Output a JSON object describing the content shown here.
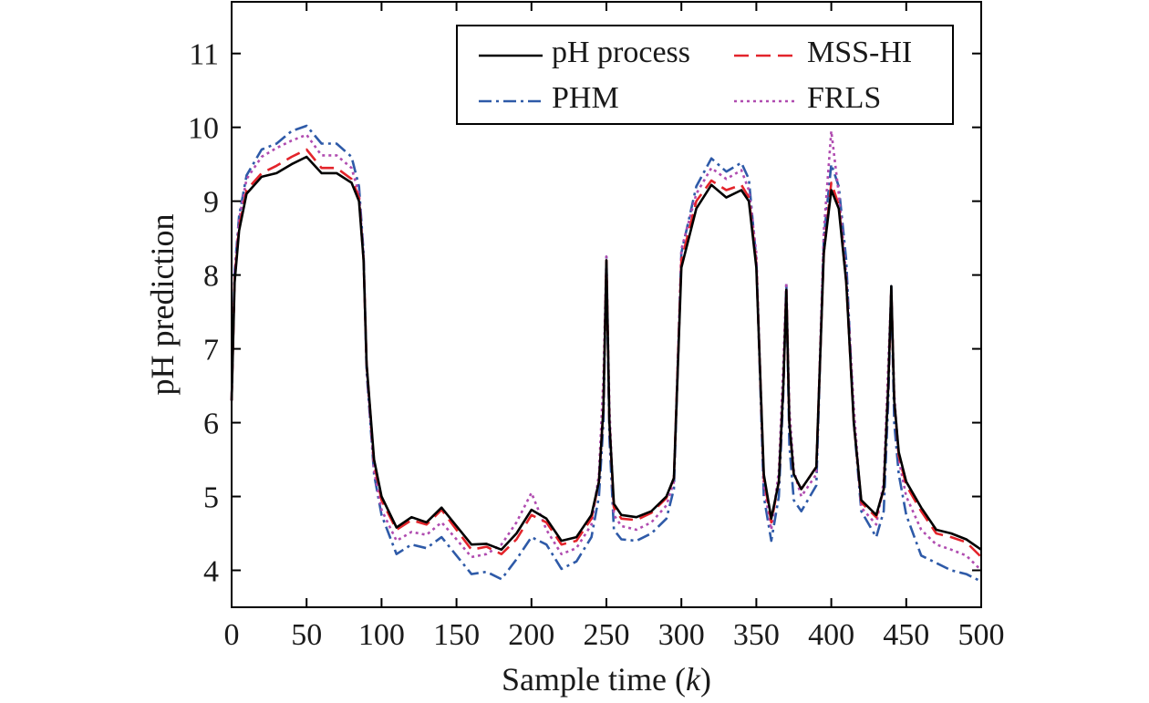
{
  "chart_data": {
    "type": "line",
    "title": "",
    "xlabel": "Sample time (",
    "xlabel_var": "k",
    "xlabel_close": ")",
    "ylabel": "pH prediction",
    "xlim": [
      0,
      500
    ],
    "ylim": [
      3.5,
      11.7
    ],
    "xticks": [
      0,
      50,
      100,
      150,
      200,
      250,
      300,
      350,
      400,
      450,
      500
    ],
    "yticks": [
      4,
      5,
      6,
      7,
      8,
      9,
      10,
      11
    ],
    "grid": false,
    "legend_position": "top-right",
    "x": [
      0,
      2,
      5,
      10,
      20,
      30,
      40,
      50,
      60,
      70,
      80,
      85,
      88,
      90,
      95,
      100,
      110,
      120,
      130,
      140,
      150,
      160,
      170,
      180,
      190,
      200,
      210,
      220,
      230,
      240,
      245,
      248,
      250,
      252,
      255,
      260,
      270,
      280,
      290,
      295,
      300,
      310,
      320,
      330,
      340,
      345,
      350,
      355,
      360,
      365,
      368,
      370,
      372,
      375,
      380,
      390,
      395,
      400,
      405,
      410,
      415,
      420,
      430,
      435,
      438,
      440,
      442,
      445,
      450,
      460,
      470,
      480,
      490,
      500
    ],
    "series": [
      {
        "name": "pH process",
        "color": "#000000",
        "dash": "solid",
        "values": [
          6.3,
          7.9,
          8.6,
          9.1,
          9.33,
          9.38,
          9.5,
          9.6,
          9.38,
          9.38,
          9.25,
          9.0,
          8.2,
          6.8,
          5.5,
          5.0,
          4.58,
          4.72,
          4.65,
          4.85,
          4.6,
          4.35,
          4.36,
          4.28,
          4.5,
          4.82,
          4.7,
          4.4,
          4.45,
          4.75,
          5.2,
          6.2,
          8.2,
          6.0,
          4.9,
          4.75,
          4.72,
          4.8,
          5.0,
          5.25,
          8.1,
          8.9,
          9.22,
          9.05,
          9.15,
          9.0,
          8.1,
          5.3,
          4.7,
          5.2,
          6.5,
          7.8,
          6.0,
          5.3,
          5.1,
          5.4,
          8.3,
          9.15,
          8.9,
          7.9,
          6.0,
          4.95,
          4.75,
          5.1,
          6.5,
          7.85,
          6.3,
          5.6,
          5.2,
          4.85,
          4.55,
          4.5,
          4.42,
          4.28
        ]
      },
      {
        "name": "MSS-HI",
        "color": "#e3242b",
        "dash": "dash",
        "values": [
          6.3,
          7.95,
          8.65,
          9.15,
          9.38,
          9.48,
          9.6,
          9.7,
          9.45,
          9.45,
          9.3,
          9.05,
          8.2,
          6.8,
          5.45,
          4.95,
          4.55,
          4.68,
          4.62,
          4.82,
          4.55,
          4.28,
          4.32,
          4.22,
          4.42,
          4.75,
          4.65,
          4.35,
          4.4,
          4.7,
          5.2,
          6.2,
          8.2,
          6.0,
          4.85,
          4.7,
          4.68,
          4.78,
          4.98,
          5.25,
          8.2,
          9.0,
          9.28,
          9.15,
          9.22,
          9.05,
          8.15,
          5.25,
          4.65,
          5.2,
          6.5,
          7.8,
          6.0,
          5.28,
          5.1,
          5.4,
          8.3,
          9.25,
          8.95,
          7.9,
          6.0,
          4.92,
          4.72,
          5.1,
          6.5,
          7.8,
          6.3,
          5.55,
          5.15,
          4.8,
          4.5,
          4.45,
          4.38,
          4.18
        ]
      },
      {
        "name": "PHM",
        "color": "#2e5aa8",
        "dash": "dashdot",
        "values": [
          6.3,
          8.05,
          8.8,
          9.35,
          9.7,
          9.78,
          9.95,
          10.02,
          9.78,
          9.78,
          9.6,
          9.2,
          8.3,
          6.7,
          5.3,
          4.75,
          4.22,
          4.35,
          4.3,
          4.45,
          4.2,
          3.95,
          3.98,
          3.88,
          4.15,
          4.45,
          4.35,
          4.02,
          4.12,
          4.45,
          5.0,
          6.0,
          8.25,
          5.8,
          4.55,
          4.42,
          4.4,
          4.5,
          4.7,
          5.1,
          8.3,
          9.2,
          9.58,
          9.4,
          9.52,
          9.3,
          8.2,
          5.0,
          4.4,
          5.0,
          6.4,
          7.9,
          5.7,
          4.95,
          4.8,
          5.15,
          8.5,
          9.5,
          9.2,
          8.2,
          6.0,
          4.8,
          4.45,
          4.8,
          6.3,
          7.85,
          6.0,
          5.3,
          4.75,
          4.2,
          4.1,
          4.0,
          3.95,
          3.85
        ]
      },
      {
        "name": "FRLS",
        "color": "#b04cb0",
        "dash": "dot",
        "values": [
          6.3,
          8.0,
          8.75,
          9.3,
          9.6,
          9.72,
          9.82,
          9.9,
          9.62,
          9.62,
          9.45,
          9.1,
          8.25,
          6.75,
          5.35,
          4.82,
          4.4,
          4.52,
          4.48,
          4.65,
          4.42,
          4.18,
          4.22,
          4.35,
          4.65,
          5.05,
          4.55,
          4.22,
          4.3,
          4.62,
          5.3,
          6.6,
          8.25,
          6.2,
          4.75,
          4.6,
          4.55,
          4.65,
          4.88,
          5.2,
          8.35,
          9.1,
          9.45,
          9.3,
          9.42,
          9.15,
          8.3,
          5.15,
          4.55,
          5.35,
          6.8,
          7.9,
          6.2,
          5.35,
          5.0,
          5.3,
          8.6,
          9.95,
          9.1,
          8.0,
          6.2,
          4.85,
          4.62,
          5.2,
          6.8,
          7.8,
          6.4,
          5.5,
          5.0,
          4.55,
          4.35,
          4.28,
          4.2,
          4.0
        ]
      }
    ]
  }
}
